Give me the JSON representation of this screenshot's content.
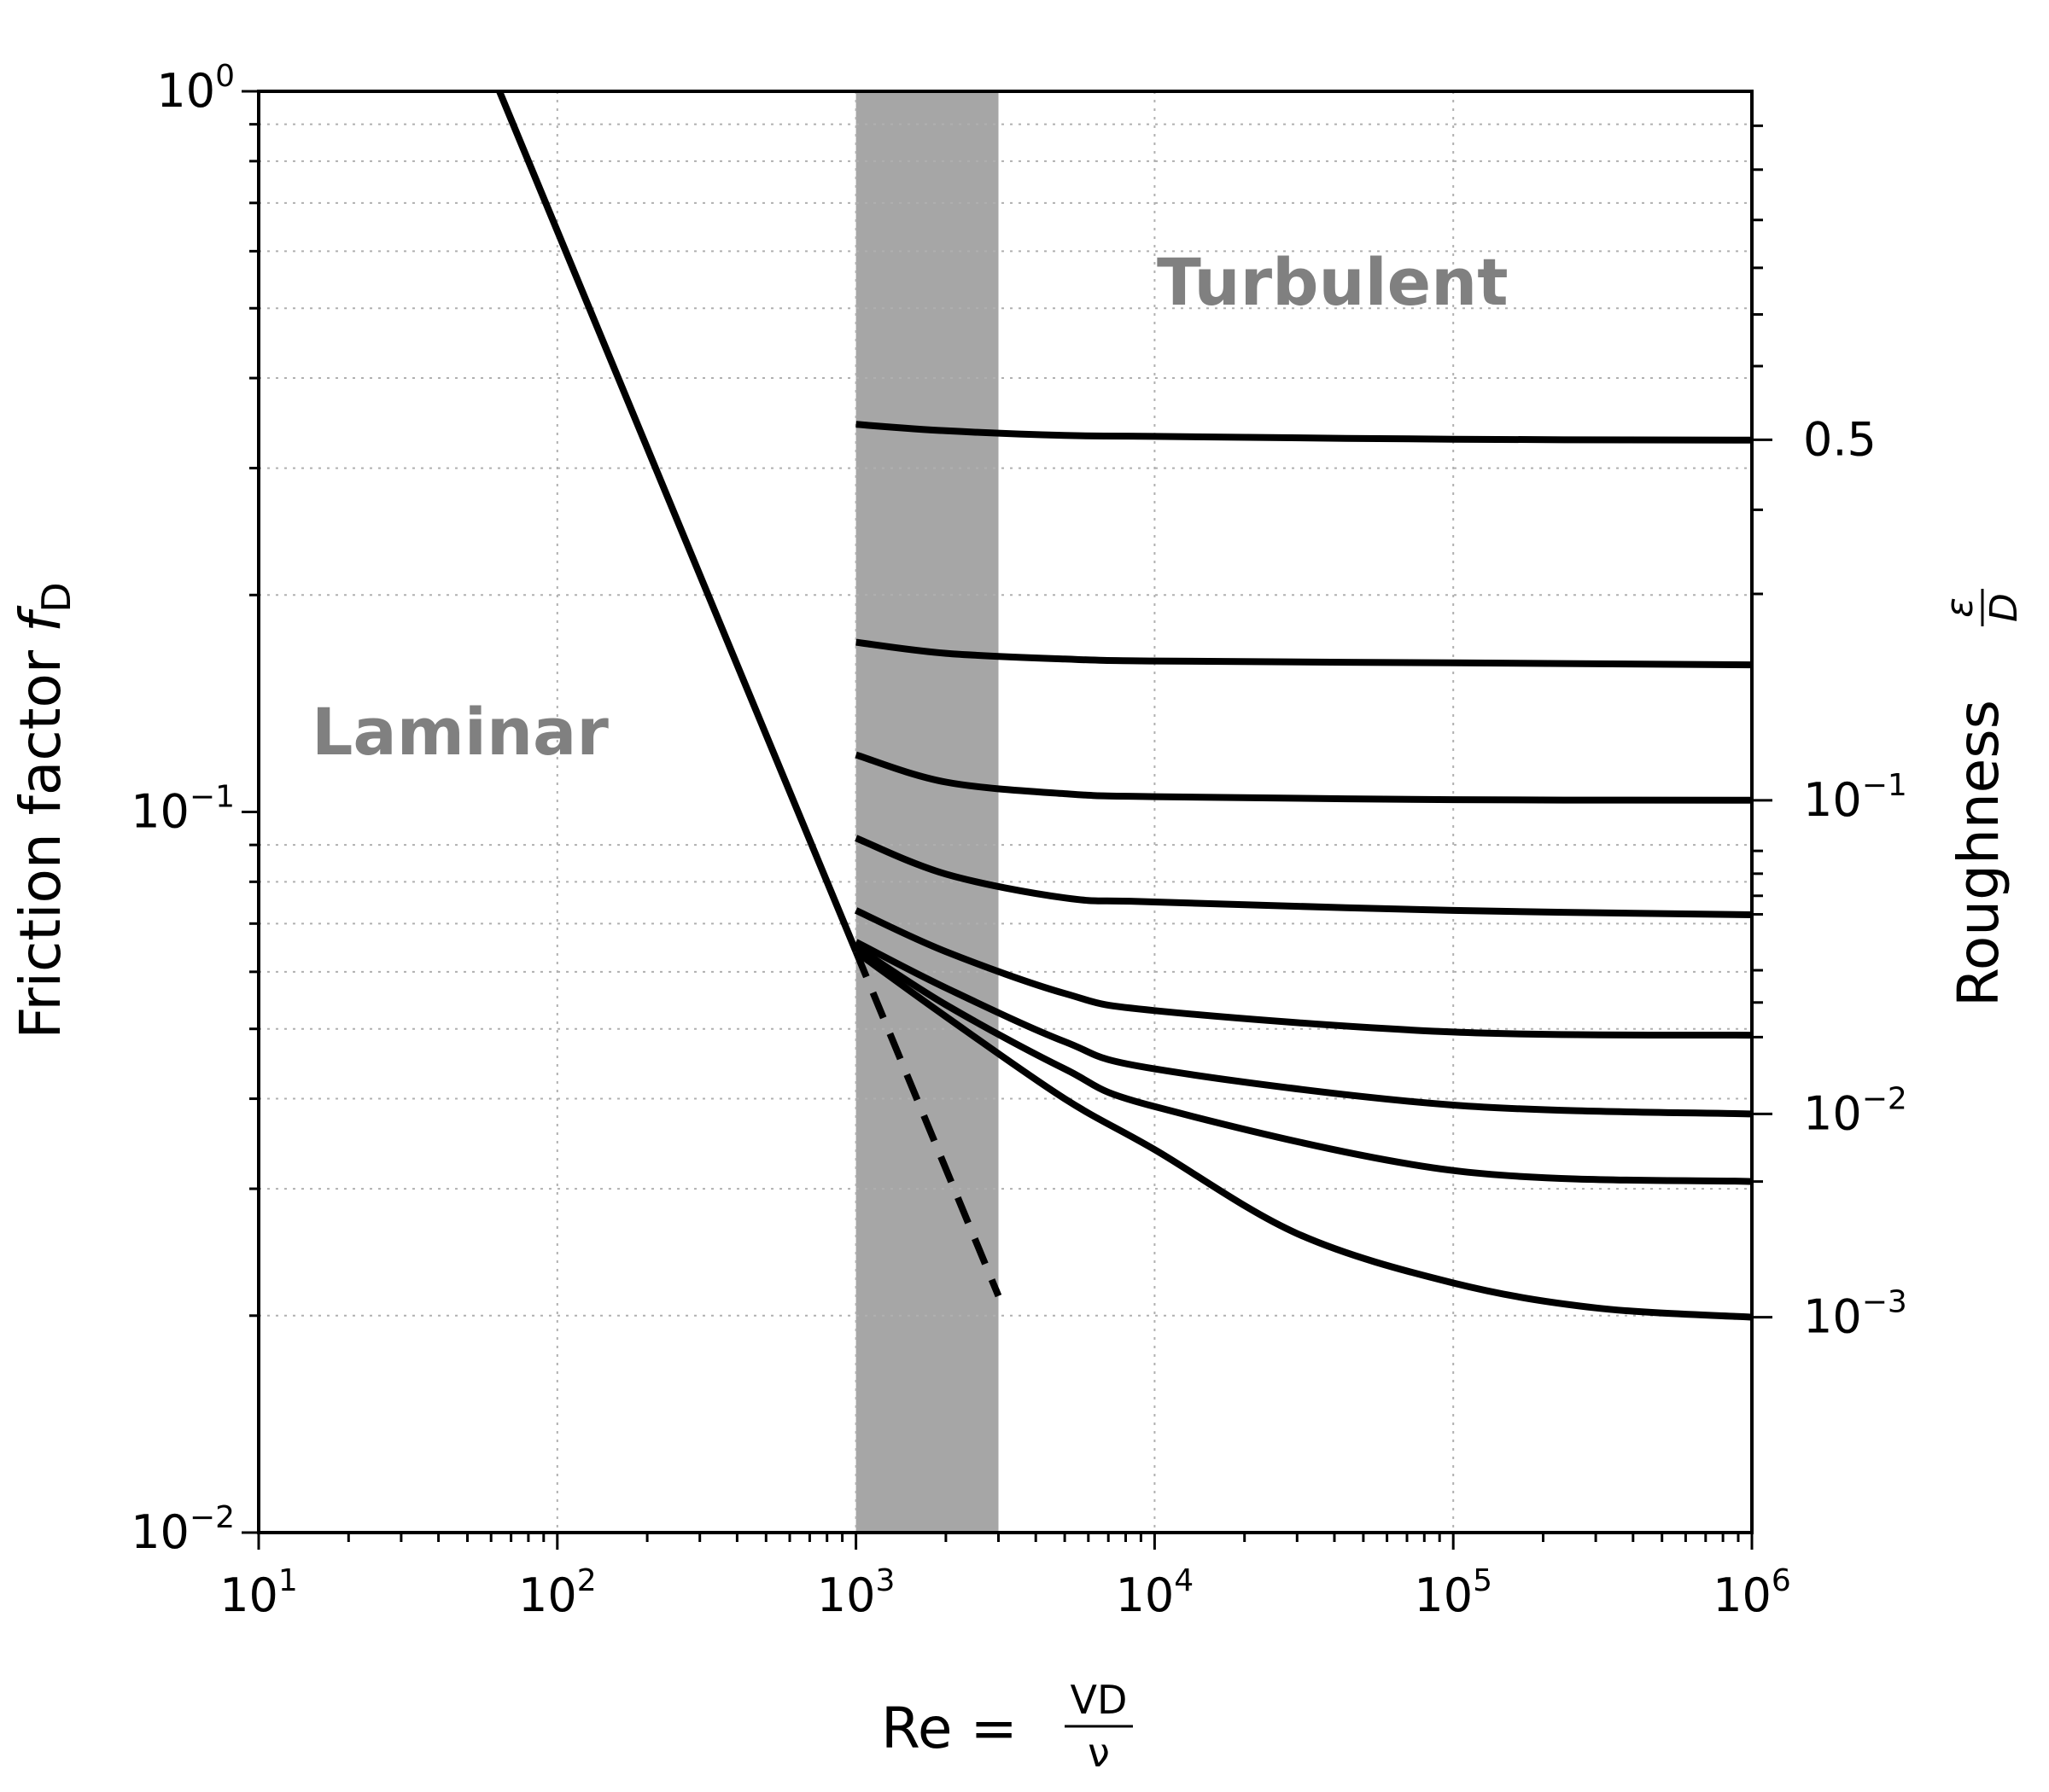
{
  "chart_data": {
    "type": "line",
    "x_scale": "log",
    "y_scale": "log",
    "xlim": [
      10,
      1000000
    ],
    "ylim": [
      0.01,
      1
    ],
    "grid": true,
    "xlabel": {
      "main": "Re =",
      "num": "VD",
      "den": "ν"
    },
    "ylabel": {
      "main": "Friction factor ",
      "var": "f",
      "sub": "D"
    },
    "y2label": {
      "main": "Roughness ",
      "num": "ε",
      "den": "D"
    },
    "annotations": {
      "laminar": "Laminar",
      "turbulent": "Turbulent"
    },
    "transition_band": {
      "x_from": 1000,
      "x_to": 3000,
      "color": "#a6a6a6"
    },
    "x_ticks": [
      {
        "value": 10,
        "base": "10",
        "exp": "1"
      },
      {
        "value": 100,
        "base": "10",
        "exp": "2"
      },
      {
        "value": 1000,
        "base": "10",
        "exp": "3"
      },
      {
        "value": 10000,
        "base": "10",
        "exp": "4"
      },
      {
        "value": 100000,
        "base": "10",
        "exp": "5"
      },
      {
        "value": 1000000,
        "base": "10",
        "exp": "6"
      }
    ],
    "y_ticks": [
      {
        "value": 0.01,
        "base": "10",
        "exp": "−2"
      },
      {
        "value": 0.1,
        "base": "10",
        "exp": "−1"
      },
      {
        "value": 1,
        "base": "10",
        "exp": "0"
      }
    ],
    "y2_ticks": [
      {
        "f_value": 0.0199,
        "base": "10",
        "exp": "−3"
      },
      {
        "f_value": 0.0381,
        "base": "10",
        "exp": "−2"
      },
      {
        "f_value": 0.1038,
        "base": "10",
        "exp": "−1"
      },
      {
        "f_value": 0.3284,
        "base": "0.5",
        "exp": ""
      }
    ],
    "y2_minor_ticks_f": [
      0.0307,
      0.0487,
      0.0544,
      0.0603,
      0.0721,
      0.0765,
      0.0821,
      0.0883,
      0.2007,
      0.2626,
      0.4156,
      0.4902,
      0.5689,
      0.6629,
      0.7786,
      0.8958
    ],
    "laminar": {
      "x": [
        62.5,
        1000
      ],
      "y": [
        1.024,
        0.064
      ]
    },
    "laminar_extension": {
      "x": [
        1000,
        3000
      ],
      "y": [
        0.064,
        0.0213
      ],
      "style": "dashed"
    },
    "series": [
      {
        "relative_roughness": 0.5,
        "x": [
          1000,
          2000,
          5000,
          10000,
          100000,
          1000000
        ],
        "y": [
          0.345,
          0.338,
          0.333,
          0.332,
          0.329,
          0.328
        ]
      },
      {
        "x": [
          1000,
          2000,
          5000,
          10000,
          100000,
          1000000
        ],
        "y": [
          0.172,
          0.166,
          0.163,
          0.162,
          0.161,
          0.16
        ]
      },
      {
        "relative_roughness": 0.1,
        "x": [
          1000,
          2000,
          5000,
          10000,
          100000,
          1000000
        ],
        "y": [
          0.12,
          0.11,
          0.106,
          0.105,
          0.104,
          0.1038
        ]
      },
      {
        "x": [
          1000,
          2000,
          5000,
          10000,
          100000,
          1000000
        ],
        "y": [
          0.092,
          0.082,
          0.076,
          0.075,
          0.073,
          0.072
        ]
      },
      {
        "x": [
          1000,
          2000,
          5000,
          10000,
          100000,
          1000000
        ],
        "y": [
          0.073,
          0.064,
          0.056,
          0.053,
          0.0495,
          0.049
        ]
      },
      {
        "relative_roughness": 0.01,
        "x": [
          1000,
          2000,
          5000,
          10000,
          100000,
          1000000
        ],
        "y": [
          0.066,
          0.057,
          0.048,
          0.044,
          0.0392,
          0.0381
        ]
      },
      {
        "x": [
          1000,
          2000,
          5000,
          10000,
          100000,
          1000000
        ],
        "y": [
          0.065,
          0.054,
          0.044,
          0.039,
          0.0318,
          0.0307
        ]
      },
      {
        "relative_roughness": 0.001,
        "x": [
          1000,
          2000,
          5000,
          10000,
          30000,
          100000,
          300000,
          1000000
        ],
        "y": [
          0.064,
          0.052,
          0.04,
          0.034,
          0.026,
          0.0222,
          0.0205,
          0.0199
        ]
      }
    ]
  }
}
